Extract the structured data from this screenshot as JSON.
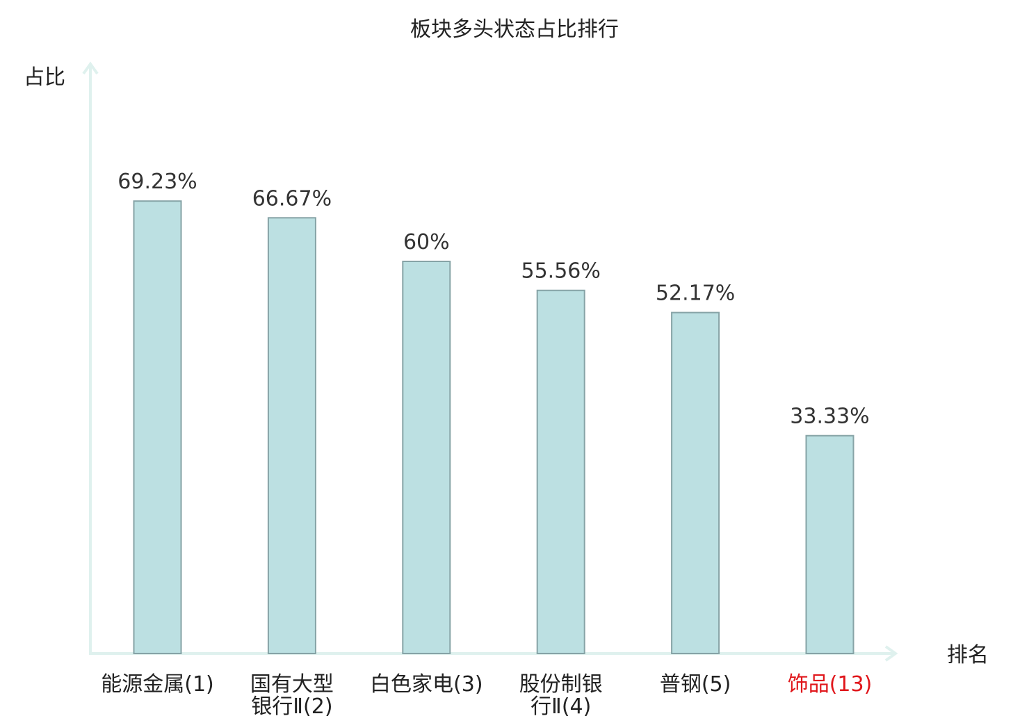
{
  "chart_data": {
    "type": "bar",
    "title": "板块多头状态占比排行",
    "ylabel": "占比",
    "xlabel": "排名",
    "ylim": [
      0,
      100
    ],
    "grid": false,
    "categories": [
      [
        "能源金属(1)"
      ],
      [
        "国有大型",
        "银行Ⅱ(2)"
      ],
      [
        "白色家电(3)"
      ],
      [
        "股份制银",
        "行Ⅱ(4)"
      ],
      [
        "普钢(5)"
      ],
      [
        "饰品(13)"
      ]
    ],
    "values": [
      69.23,
      66.67,
      60,
      55.56,
      52.17,
      33.33
    ],
    "value_labels": [
      "69.23%",
      "66.67%",
      "60%",
      "55.56%",
      "52.17%",
      "33.33%"
    ],
    "highlight_index": 5,
    "colors": {
      "bar_fill": "#bce0e2",
      "bar_stroke": "#86a3a6",
      "axis": "#dff1ee",
      "category_text": "#222222",
      "highlight_text": "#e0161b"
    }
  }
}
